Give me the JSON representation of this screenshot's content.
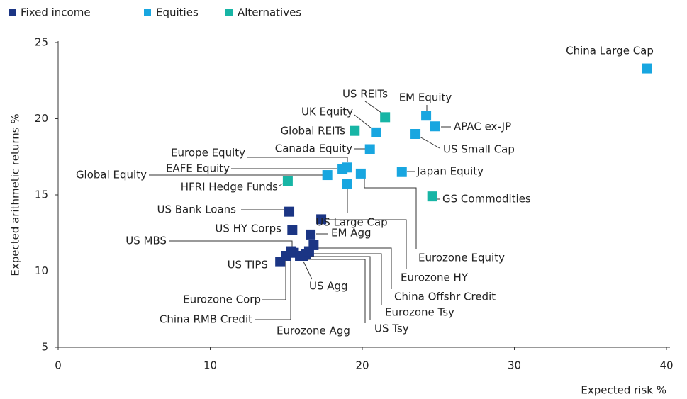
{
  "chart_data": {
    "type": "scatter",
    "xlabel": "Expected risk %",
    "ylabel": "Expected arithmetic returns %",
    "xlim": [
      0,
      40
    ],
    "ylim": [
      5,
      25
    ],
    "xticks": [
      0,
      10,
      20,
      30,
      40
    ],
    "yticks": [
      5,
      10,
      15,
      20,
      25
    ],
    "legend": "top-left",
    "series": [
      {
        "name": "Fixed income",
        "color": "#1b3584",
        "labels": [
          "US Bank Loans",
          "US HY Corps",
          "Eurozone HY",
          "EM Agg",
          "US MBS",
          "US TIPS",
          "Eurozone Corp",
          "China RMB Credit",
          "US Agg",
          "Eurozone Agg",
          "US Tsy",
          "Eurozone Tsy",
          "China Offshr Credit"
        ],
        "x": [
          15.2,
          15.4,
          17.3,
          16.6,
          15.5,
          14.6,
          15.0,
          15.3,
          16.1,
          15.9,
          16.3,
          16.5,
          16.8
        ],
        "y": [
          13.9,
          12.7,
          13.4,
          12.4,
          11.2,
          10.6,
          11.0,
          11.3,
          11.0,
          11.0,
          11.1,
          11.3,
          11.7
        ]
      },
      {
        "name": "Equities",
        "color": "#18a6e0",
        "labels": [
          "China Large Cap",
          "EM Equity",
          "APAC ex-JP",
          "US Small Cap",
          "UK Equity",
          "Canada Equity",
          "Europe Equity",
          "EAFE Equity",
          "Global Equity",
          "Eurozone Equity",
          "US Large Cap",
          "Japan Equity"
        ],
        "x": [
          38.7,
          24.2,
          24.8,
          23.5,
          20.9,
          20.5,
          19.0,
          18.7,
          17.7,
          19.9,
          19.0,
          22.6
        ],
        "y": [
          23.3,
          20.2,
          19.5,
          19.0,
          19.1,
          18.0,
          16.8,
          16.7,
          16.3,
          16.4,
          15.7,
          16.5
        ]
      },
      {
        "name": "Alternatives",
        "color": "#17b5a5",
        "labels": [
          "US REITs",
          "Global REITs",
          "HFRI Hedge Funds",
          "GS Commodities"
        ],
        "x": [
          21.5,
          19.5,
          15.1,
          24.6
        ],
        "y": [
          20.1,
          19.2,
          15.9,
          14.9
        ]
      }
    ]
  }
}
